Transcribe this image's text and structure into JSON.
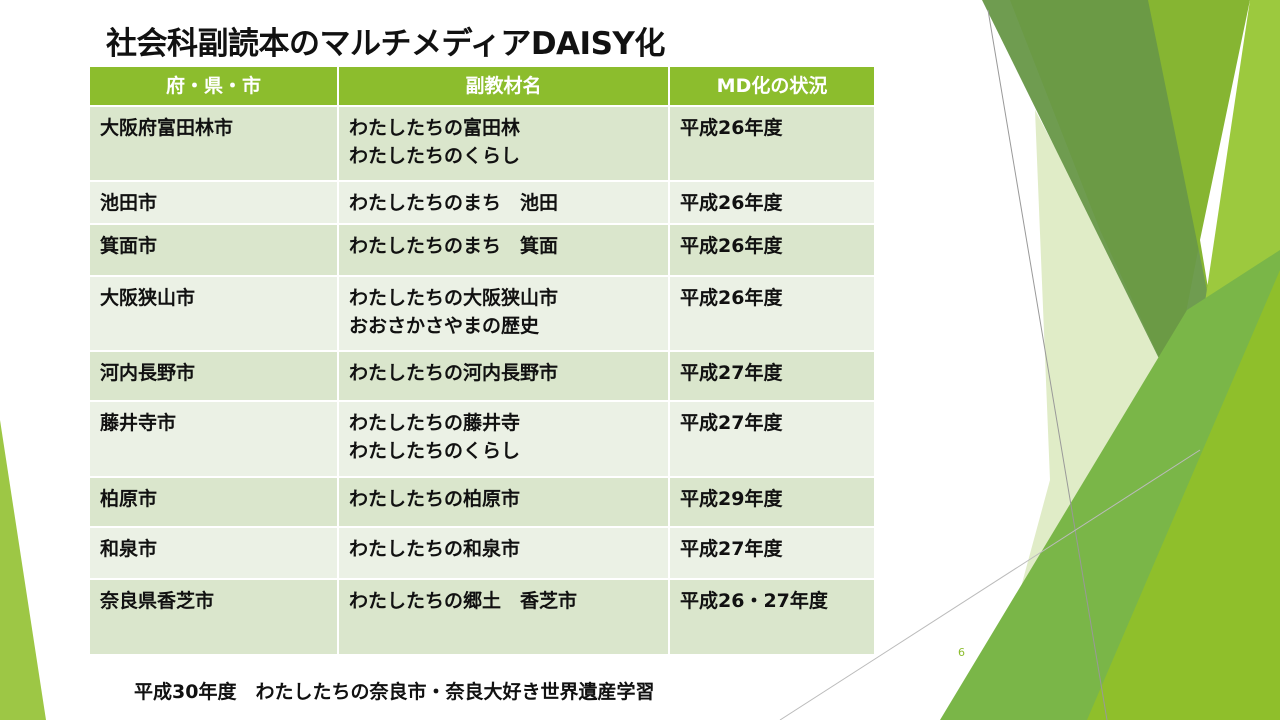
{
  "slide": {
    "title": "社会科副読本のマルチメディアDAISY化",
    "page_number": "6",
    "footer": "平成30年度　わたしたちの奈良市・奈良大好き世界遺産学習",
    "colors": {
      "header": "#8cbd2d",
      "row_odd": "#dae6cc",
      "row_even": "#ebf1e5",
      "accent": "#8cbd2d"
    }
  },
  "table": {
    "headers": [
      "府・県・市",
      "副教材名",
      "MD化の状況"
    ],
    "rows": [
      {
        "city": "大阪府富田林市",
        "materials": [
          "わたしたちの富田林",
          "わたしたちのくらし"
        ],
        "status": "平成26年度"
      },
      {
        "city": "池田市",
        "materials": [
          "わたしたちのまち　池田"
        ],
        "status": "平成26年度"
      },
      {
        "city": "箕面市",
        "materials": [
          "わたしたちのまち　箕面"
        ],
        "status": "平成26年度"
      },
      {
        "city": "大阪狭山市",
        "materials": [
          "わたしたちの大阪狭山市",
          "おおさかさやまの歴史"
        ],
        "status": "平成26年度"
      },
      {
        "city": "河内長野市",
        "materials": [
          "わたしたちの河内長野市"
        ],
        "status": "平成27年度"
      },
      {
        "city": "藤井寺市",
        "materials": [
          "わたしたちの藤井寺",
          "わたしたちのくらし"
        ],
        "status": "平成27年度"
      },
      {
        "city": "柏原市",
        "materials": [
          "わたしたちの柏原市"
        ],
        "status": "平成29年度"
      },
      {
        "city": "和泉市",
        "materials": [
          "わたしたちの和泉市"
        ],
        "status": "平成27年度"
      },
      {
        "city": "奈良県香芝市",
        "materials": [
          "わたしたちの郷土　香芝市"
        ],
        "status": "平成26・27年度"
      }
    ]
  }
}
